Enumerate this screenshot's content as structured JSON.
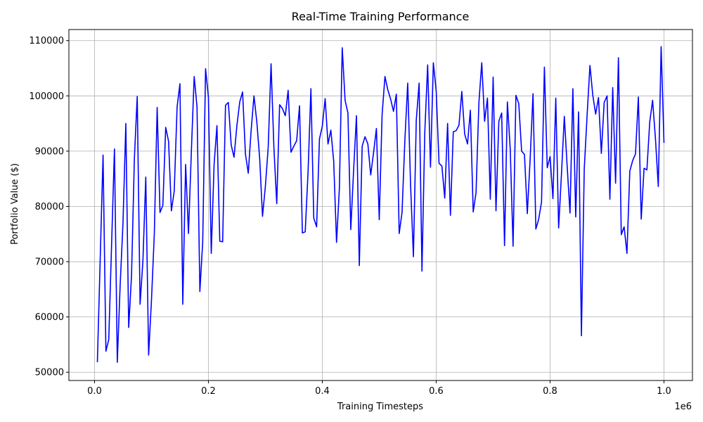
{
  "chart_data": {
    "type": "line",
    "title": "Real-Time Training Performance",
    "xlabel": "Training Timesteps",
    "ylabel": "Portfolio Value ($)",
    "x_offset_label": "1e6",
    "xlim": [
      -0.045,
      1.05
    ],
    "ylim": [
      48500,
      112000
    ],
    "x_ticks": [
      0.0,
      0.2,
      0.4,
      0.6,
      0.8,
      1.0
    ],
    "x_tick_labels": [
      "0.0",
      "0.2",
      "0.4",
      "0.6",
      "0.8",
      "1.0"
    ],
    "y_ticks": [
      50000,
      60000,
      70000,
      80000,
      90000,
      100000,
      110000
    ],
    "y_tick_labels": [
      "50000",
      "60000",
      "70000",
      "80000",
      "90000",
      "100000",
      "110000"
    ],
    "grid": true,
    "line_color": "#0000ff",
    "series": [
      {
        "x": [
          0.005,
          0.015,
          0.02,
          0.025,
          0.035,
          0.04,
          0.045,
          0.05,
          0.055,
          0.06,
          0.065,
          0.07,
          0.075,
          0.08,
          0.085,
          0.09,
          0.095,
          0.1,
          0.105,
          0.11,
          0.115,
          0.12,
          0.125,
          0.13,
          0.135,
          0.14,
          0.145,
          0.15,
          0.155,
          0.16,
          0.165,
          0.17,
          0.175,
          0.18,
          0.185,
          0.19,
          0.195,
          0.2,
          0.205,
          0.21,
          0.215,
          0.22,
          0.225,
          0.23,
          0.235,
          0.24,
          0.245,
          0.25,
          0.255,
          0.26,
          0.265,
          0.27,
          0.275,
          0.28,
          0.285,
          0.29,
          0.295,
          0.3,
          0.305,
          0.31,
          0.315,
          0.32,
          0.325,
          0.33,
          0.335,
          0.34,
          0.345,
          0.35,
          0.355,
          0.36,
          0.365,
          0.37,
          0.375,
          0.38,
          0.385,
          0.39,
          0.395,
          0.4,
          0.405,
          0.41,
          0.415,
          0.42,
          0.425,
          0.43,
          0.435,
          0.44,
          0.445,
          0.45,
          0.455,
          0.46,
          0.465,
          0.47,
          0.475,
          0.48,
          0.485,
          0.49,
          0.495,
          0.5,
          0.505,
          0.51,
          0.515,
          0.52,
          0.525,
          0.53,
          0.535,
          0.54,
          0.545,
          0.55,
          0.555,
          0.56,
          0.565,
          0.57,
          0.575,
          0.58,
          0.585,
          0.59,
          0.595,
          0.6,
          0.605,
          0.61,
          0.615,
          0.62,
          0.625,
          0.63,
          0.635,
          0.64,
          0.645,
          0.65,
          0.655,
          0.66,
          0.665,
          0.67,
          0.675,
          0.68,
          0.685,
          0.69,
          0.695,
          0.7,
          0.705,
          0.71,
          0.715,
          0.72,
          0.725,
          0.73,
          0.735,
          0.74,
          0.745,
          0.75,
          0.755,
          0.76,
          0.765,
          0.77,
          0.775,
          0.78,
          0.785,
          0.79,
          0.795,
          0.8,
          0.805,
          0.81,
          0.815,
          0.82,
          0.825,
          0.83,
          0.835,
          0.84,
          0.845,
          0.85,
          0.855,
          0.86,
          0.865,
          0.87,
          0.875,
          0.88,
          0.885,
          0.89,
          0.895,
          0.9,
          0.905,
          0.91,
          0.915,
          0.92,
          0.925,
          0.93,
          0.935,
          0.94,
          0.945,
          0.95,
          0.955,
          0.96,
          0.965,
          0.97,
          0.975,
          0.98,
          0.985,
          0.99,
          0.995,
          1.0
        ],
        "values": [
          51800,
          89300,
          53800,
          55900,
          90400,
          51800,
          65700,
          77000,
          95000,
          58100,
          67500,
          88700,
          99900,
          62300,
          70200,
          85300,
          53100,
          63000,
          75000,
          97900,
          78900,
          80200,
          94300,
          91800,
          79200,
          82800,
          98000,
          102200,
          62300,
          87600,
          75100,
          89800,
          103500,
          98000,
          64600,
          73600,
          104900,
          99800,
          71500,
          87600,
          94600,
          73700,
          73600,
          98300,
          98800,
          91100,
          88900,
          94600,
          98900,
          100700,
          89500,
          86000,
          93700,
          100000,
          95300,
          88700,
          78200,
          83600,
          90700,
          105800,
          90600,
          80500,
          98400,
          97700,
          96400,
          101000,
          89800,
          90900,
          91900,
          98200,
          75200,
          75400,
          86300,
          101300,
          77900,
          76300,
          92200,
          94500,
          99500,
          91300,
          93800,
          88200,
          73500,
          83300,
          108700,
          99200,
          96900,
          75800,
          86600,
          96400,
          69300,
          90900,
          92600,
          91300,
          85700,
          89700,
          94100,
          77600,
          96600,
          103500,
          101100,
          99400,
          97200,
          100300,
          75100,
          78900,
          92000,
          102300,
          83900,
          70900,
          95600,
          102300,
          68300,
          93500,
          105600,
          87100,
          106000,
          100900,
          87800,
          87300,
          81500,
          95000,
          78400,
          93500,
          93700,
          94700,
          100800,
          93100,
          91300,
          97400,
          79000,
          82500,
          98800,
          106000,
          95400,
          99600,
          81300,
          103400,
          79200,
          95400,
          96900,
          72900,
          98900,
          90400,
          72800,
          100100,
          98600,
          90000,
          89400,
          78700,
          88600,
          100400,
          75900,
          77700,
          80800,
          105200,
          87000,
          89000,
          81400,
          99600,
          76100,
          85900,
          96300,
          87200,
          78800,
          101300,
          78100,
          97100,
          56600,
          86800,
          96500,
          105500,
          100100,
          96700,
          99700,
          89600,
          98800,
          100000,
          81300,
          101500,
          84200,
          106900,
          74900,
          76300,
          71500,
          86400,
          88300,
          89500,
          99800,
          77700,
          86900,
          86600,
          95300,
          99200,
          92300,
          83600,
          108900,
          91500
        ]
      }
    ]
  }
}
